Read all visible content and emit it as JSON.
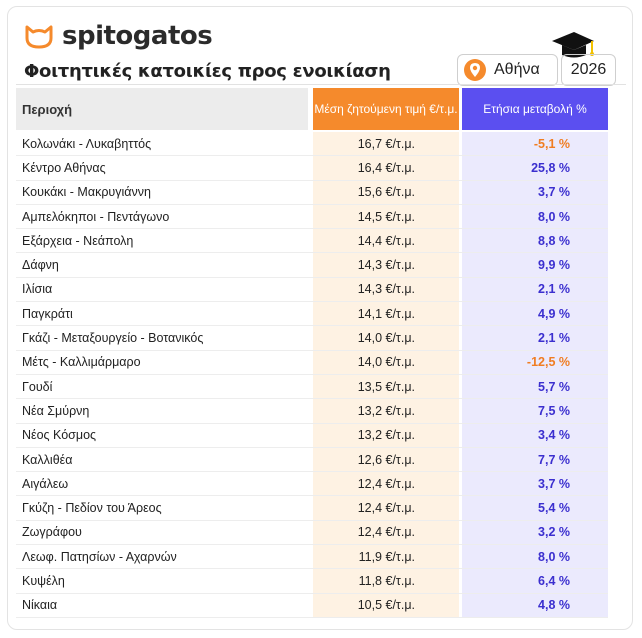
{
  "header": {
    "brand": "spitogatos",
    "subtitle": "Φοιτητικές κατοικίες προς ενοικίαση",
    "city": "Αθήνα",
    "year": "2026"
  },
  "table": {
    "columns": {
      "region": "Περιοχή",
      "price": "Μέση ζητούμενη τιμή €/τ.μ.",
      "change": "Ετήσια μεταβολή %"
    },
    "rows": [
      {
        "region": "Κολωνάκι - Λυκαβηττός",
        "price": "16,7 €/τ.μ.",
        "change": "-5,1 %",
        "negative": true
      },
      {
        "region": "Κέντρο Αθήνας",
        "price": "16,4 €/τ.μ.",
        "change": "25,8 %",
        "negative": false
      },
      {
        "region": "Κουκάκι - Μακρυγιάννη",
        "price": "15,6 €/τ.μ.",
        "change": "3,7 %",
        "negative": false
      },
      {
        "region": "Αμπελόκηποι - Πεντάγωνο",
        "price": "14,5 €/τ.μ.",
        "change": "8,0 %",
        "negative": false
      },
      {
        "region": "Εξάρχεια - Νεάπολη",
        "price": "14,4 €/τ.μ.",
        "change": "8,8 %",
        "negative": false
      },
      {
        "region": "Δάφνη",
        "price": "14,3 €/τ.μ.",
        "change": "9,9 %",
        "negative": false
      },
      {
        "region": "Ιλίσια",
        "price": "14,3 €/τ.μ.",
        "change": "2,1 %",
        "negative": false
      },
      {
        "region": "Παγκράτι",
        "price": "14,1 €/τ.μ.",
        "change": "4,9 %",
        "negative": false
      },
      {
        "region": "Γκάζι - Μεταξουργείο - Βοτανικός",
        "price": "14,0 €/τ.μ.",
        "change": "2,1 %",
        "negative": false
      },
      {
        "region": "Μέτς - Καλλιμάρμαρο",
        "price": "14,0 €/τ.μ.",
        "change": "-12,5 %",
        "negative": true
      },
      {
        "region": "Γουδί",
        "price": "13,5 €/τ.μ.",
        "change": "5,7 %",
        "negative": false
      },
      {
        "region": "Νέα Σμύρνη",
        "price": "13,2 €/τ.μ.",
        "change": "7,5 %",
        "negative": false
      },
      {
        "region": "Νέος Κόσμος",
        "price": "13,2 €/τ.μ.",
        "change": "3,4 %",
        "negative": false
      },
      {
        "region": "Καλλιθέα",
        "price": "12,6 €/τ.μ.",
        "change": "7,7 %",
        "negative": false
      },
      {
        "region": "Αιγάλεω",
        "price": "12,4 €/τ.μ.",
        "change": "3,7 %",
        "negative": false
      },
      {
        "region": "Γκύζη - Πεδίον του Άρεος",
        "price": "12,4 €/τ.μ.",
        "change": "5,4 %",
        "negative": false
      },
      {
        "region": "Ζωγράφου",
        "price": "12,4 €/τ.μ.",
        "change": "3,2 %",
        "negative": false
      },
      {
        "region": "Λεωφ. Πατησίων - Αχαρνών",
        "price": "11,9 €/τ.μ.",
        "change": "8,0 %",
        "negative": false
      },
      {
        "region": "Κυψέλη",
        "price": "11,8 €/τ.μ.",
        "change": "6,4 %",
        "negative": false
      },
      {
        "region": "Νίκαια",
        "price": "10,5 €/τ.μ.",
        "change": "4,8 %",
        "negative": false
      }
    ]
  },
  "icons": {
    "logo": "cat-head-icon",
    "pin": "map-pin-icon",
    "cap": "graduation-cap-icon"
  },
  "colors": {
    "accent_orange": "#f58a2c",
    "accent_purple": "#5b4ff0",
    "negative": "#f07d22",
    "positive": "#3b2fcf"
  }
}
